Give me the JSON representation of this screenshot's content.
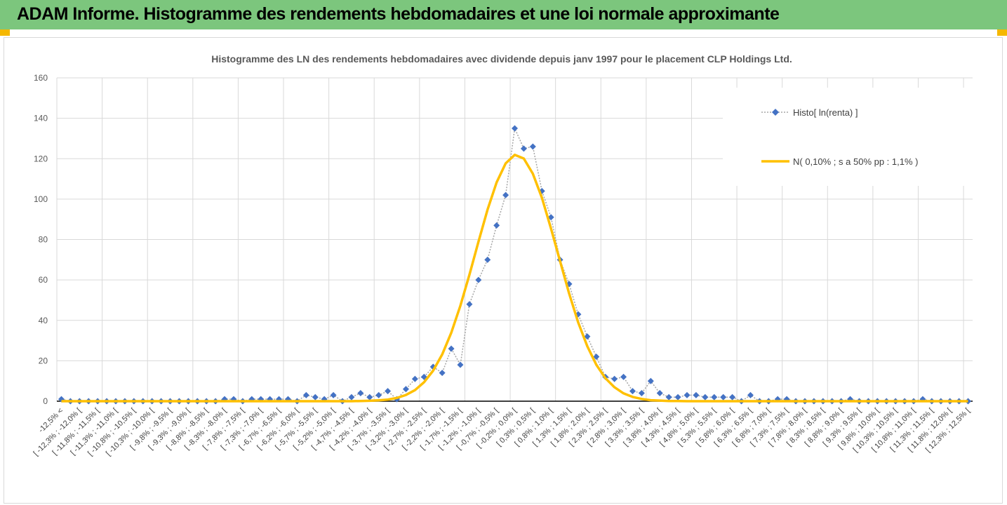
{
  "header": {
    "title": "ADAM Informe. Histogramme des rendements hebdomadaires et une loi normale approximante"
  },
  "chart_data": {
    "type": "line",
    "title": "Histogramme des LN des rendements hebdomadaires avec dividende depuis janv 1997 pour le placement CLP Holdings Ltd.",
    "categories": [
      "-12,5% <",
      null,
      "[ -12,3% ; -12,0% [",
      null,
      "[ -11,8% ; -11,5% [",
      null,
      "[ -11,3% ; -11,0% [",
      null,
      "[ -10,8% ; -10,5% [",
      null,
      "[ -10,3% ; -10,0% [",
      null,
      "[ -9,8% ; -9,5% [",
      null,
      "[ -9,3% ; -9,0% [",
      null,
      "[ -8,8% ; -8,5% [",
      null,
      "[ -8,3% ; -8,0% [",
      null,
      "[ -7,8% ; -7,5% [",
      null,
      "[ -7,3% ; -7,0% [",
      null,
      "[ -6,7% ; -6,5% [",
      null,
      "[ -6,2% ; -6,0% [",
      null,
      "[ -5,7% ; -5,5% [",
      null,
      "[ -5,2% ; -5,0% [",
      null,
      "[ -4,7% ; -4,5% [",
      null,
      "[ -4,2% ; -4,0% [",
      null,
      "[ -3,7% ; -3,5% [",
      null,
      "[ -3,2% ; -3,0% [",
      null,
      "[ -2,7% ; -2,5% [",
      null,
      "[ -2,2% ; -2,0% [",
      null,
      "[ -1,7% ; -1,5% [",
      null,
      "[ -1,2% ; -1,0% [",
      null,
      "[ -0,7% ; -0,5% [",
      null,
      "[ -0,2% ; 0,0% [",
      null,
      "[ 0,3% ; 0,5% [",
      null,
      "[ 0,8% ; 1,0% [",
      null,
      "[ 1,3% ; 1,5% [",
      null,
      "[ 1,8% ; 2,0% [",
      null,
      "[ 2,3% ; 2,5% [",
      null,
      "[ 2,8% ; 3,0% [",
      null,
      "[ 3,3% ; 3,5% [",
      null,
      "[ 3,8% ; 4,0% [",
      null,
      "[ 4,3% ; 4,5% [",
      null,
      "[ 4,8% ; 5,0% [",
      null,
      "[ 5,3% ; 5,5% [",
      null,
      "[ 5,8% ; 6,0% [",
      null,
      "[ 6,3% ; 6,5% [",
      null,
      "[ 6,8% ; 7,0% [",
      null,
      "[ 7,3% ; 7,5% [",
      null,
      "[ 7,8% ; 8,0% [",
      null,
      "[ 8,3% ; 8,5% [",
      null,
      "[ 8,8% ; 9,0% [",
      null,
      "[ 9,3% ; 9,5% [",
      null,
      "[ 9,8% ; 10,0% [",
      null,
      "[ 10,3% ; 10,5% [",
      null,
      "[ 10,8% ; 11,0% [",
      null,
      "[ 11,3% ; 11,5% [",
      null,
      "[ 11,8% ; 12,0% [",
      null,
      "[ 12,3% ; 12,5% ["
    ],
    "series": [
      {
        "name": "Histo[ ln(renta) ]",
        "color": "#4472c4",
        "line_color": "#a5a5a5",
        "line_style": "dotted",
        "marker": "diamond",
        "values": [
          1,
          0,
          0,
          0,
          0,
          0,
          0,
          0,
          0,
          0,
          0,
          0,
          0,
          0,
          0,
          0,
          0,
          0,
          1,
          1,
          0,
          1,
          1,
          1,
          1,
          1,
          0,
          3,
          2,
          1,
          3,
          0,
          2,
          4,
          2,
          3,
          5,
          1,
          6,
          11,
          12,
          17,
          14,
          26,
          18,
          48,
          60,
          70,
          87,
          102,
          135,
          125,
          126,
          104,
          91,
          70,
          58,
          43,
          32,
          22,
          12,
          11,
          12,
          5,
          4,
          10,
          4,
          2,
          2,
          3,
          3,
          2,
          2,
          2,
          2,
          0,
          3,
          0,
          0,
          1,
          1,
          0,
          0,
          0,
          0,
          0,
          0,
          1,
          0,
          0,
          0,
          0,
          0,
          0,
          0,
          1,
          0,
          0,
          0,
          0,
          0
        ]
      },
      {
        "name": "N( 0,10% ; s a 50% pp : 1,1% )",
        "color": "#ffc000",
        "line_style": "solid",
        "marker": "none",
        "values": [
          0,
          0,
          0,
          0,
          0,
          0,
          0,
          0,
          0,
          0,
          0,
          0,
          0,
          0,
          0,
          0,
          0,
          0,
          0,
          0,
          0,
          0,
          0,
          0,
          0,
          0,
          0,
          0,
          0,
          0,
          0,
          0,
          0,
          0.1,
          0.2,
          0.4,
          0.8,
          1.6,
          3.1,
          5.5,
          9.4,
          15.1,
          23.1,
          33.9,
          47.2,
          62.5,
          78.9,
          94.7,
          108.3,
          117.7,
          121.9,
          120.1,
          112.6,
          100.6,
          85.4,
          69.3,
          53.3,
          39.0,
          27.2,
          18.0,
          11.4,
          6.9,
          3.9,
          2.1,
          1.1,
          0.5,
          0.3,
          0.1,
          0.1,
          0,
          0,
          0,
          0,
          0,
          0,
          0,
          0,
          0,
          0,
          0,
          0,
          0,
          0,
          0,
          0,
          0,
          0,
          0,
          0,
          0,
          0,
          0,
          0,
          0,
          0,
          0,
          0,
          0,
          0,
          0,
          0
        ]
      }
    ],
    "ylim": [
      0,
      160
    ],
    "yticks": [
      0,
      20,
      40,
      60,
      80,
      100,
      120,
      140,
      160
    ],
    "grid": true,
    "legend": "top-right"
  }
}
